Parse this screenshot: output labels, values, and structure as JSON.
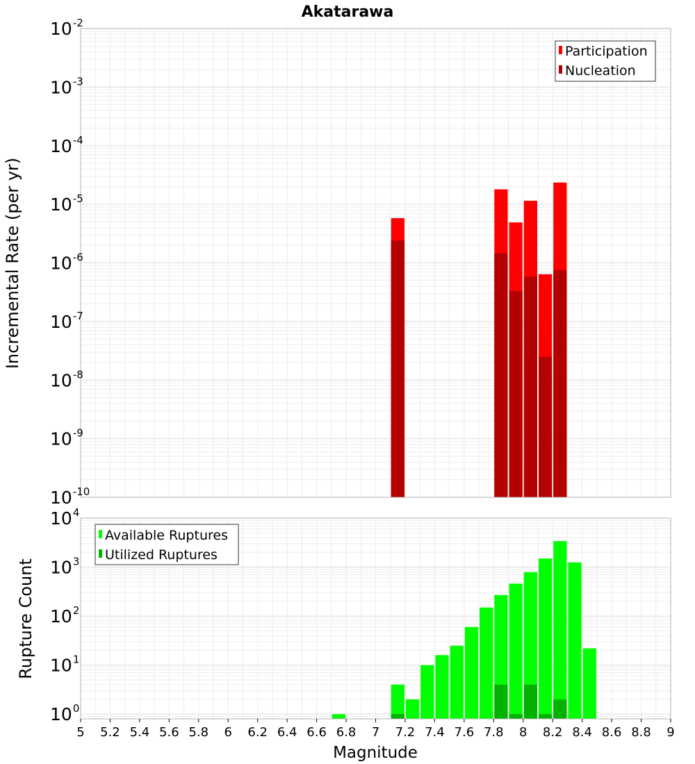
{
  "chart_data": [
    {
      "type": "bar",
      "title": "Akatarawa",
      "xlabel": "",
      "ylabel": "Incremental Rate (per yr)",
      "yscale": "log",
      "ylim": [
        1e-10,
        0.01
      ],
      "xlim": [
        5,
        9
      ],
      "ytick_exponents": [
        "-10",
        "-9",
        "-8",
        "-7",
        "-6",
        "-5",
        "-4",
        "-3",
        "-2"
      ],
      "legend_position": "top-right",
      "legend": [
        "Participation",
        "Nucleation"
      ],
      "colors": [
        "#ff0000",
        "#b30000"
      ],
      "bin_width": 0.1,
      "x": [
        7.15,
        7.85,
        7.95,
        8.05,
        8.15,
        8.25
      ],
      "series": [
        {
          "name": "Participation",
          "values": [
            5.8e-06,
            1.8e-05,
            4.9e-06,
            1.15e-05,
            6.4e-07,
            2.35e-05
          ]
        },
        {
          "name": "Nucleation",
          "values": [
            2.4e-06,
            1.45e-06,
            3.3e-07,
            5.8e-07,
            2.5e-08,
            7.5e-07
          ]
        }
      ]
    },
    {
      "type": "bar",
      "title": "",
      "xlabel": "Magnitude",
      "ylabel": "Rupture Count",
      "yscale": "log",
      "ylim": [
        0.8,
        10000
      ],
      "xlim": [
        5,
        9
      ],
      "ytick_exponents": [
        "0",
        "1",
        "2",
        "3",
        "4"
      ],
      "xticks": [
        "5",
        "5.2",
        "5.4",
        "5.6",
        "5.8",
        "6",
        "6.2",
        "6.4",
        "6.6",
        "6.8",
        "7",
        "7.2",
        "7.4",
        "7.6",
        "7.8",
        "8",
        "8.2",
        "8.4",
        "8.6",
        "8.8",
        "9"
      ],
      "legend_position": "top-left",
      "legend": [
        "Available Ruptures",
        "Utilized Ruptures"
      ],
      "colors": [
        "#00ff00",
        "#00b300"
      ],
      "bin_width": 0.1,
      "x": [
        6.75,
        7.15,
        7.25,
        7.35,
        7.45,
        7.55,
        7.65,
        7.75,
        7.85,
        7.95,
        8.05,
        8.15,
        8.25,
        8.35,
        8.45
      ],
      "series": [
        {
          "name": "Available Ruptures",
          "values": [
            1,
            4,
            2,
            10,
            16,
            25,
            60,
            150,
            270,
            460,
            790,
            1500,
            3400,
            1250,
            22
          ]
        },
        {
          "name": "Utilized Ruptures",
          "values": [
            0,
            1,
            0,
            0,
            0,
            0,
            0,
            0,
            4,
            1,
            4,
            1,
            2,
            0,
            0
          ]
        }
      ]
    }
  ],
  "tick_base_label": "10"
}
